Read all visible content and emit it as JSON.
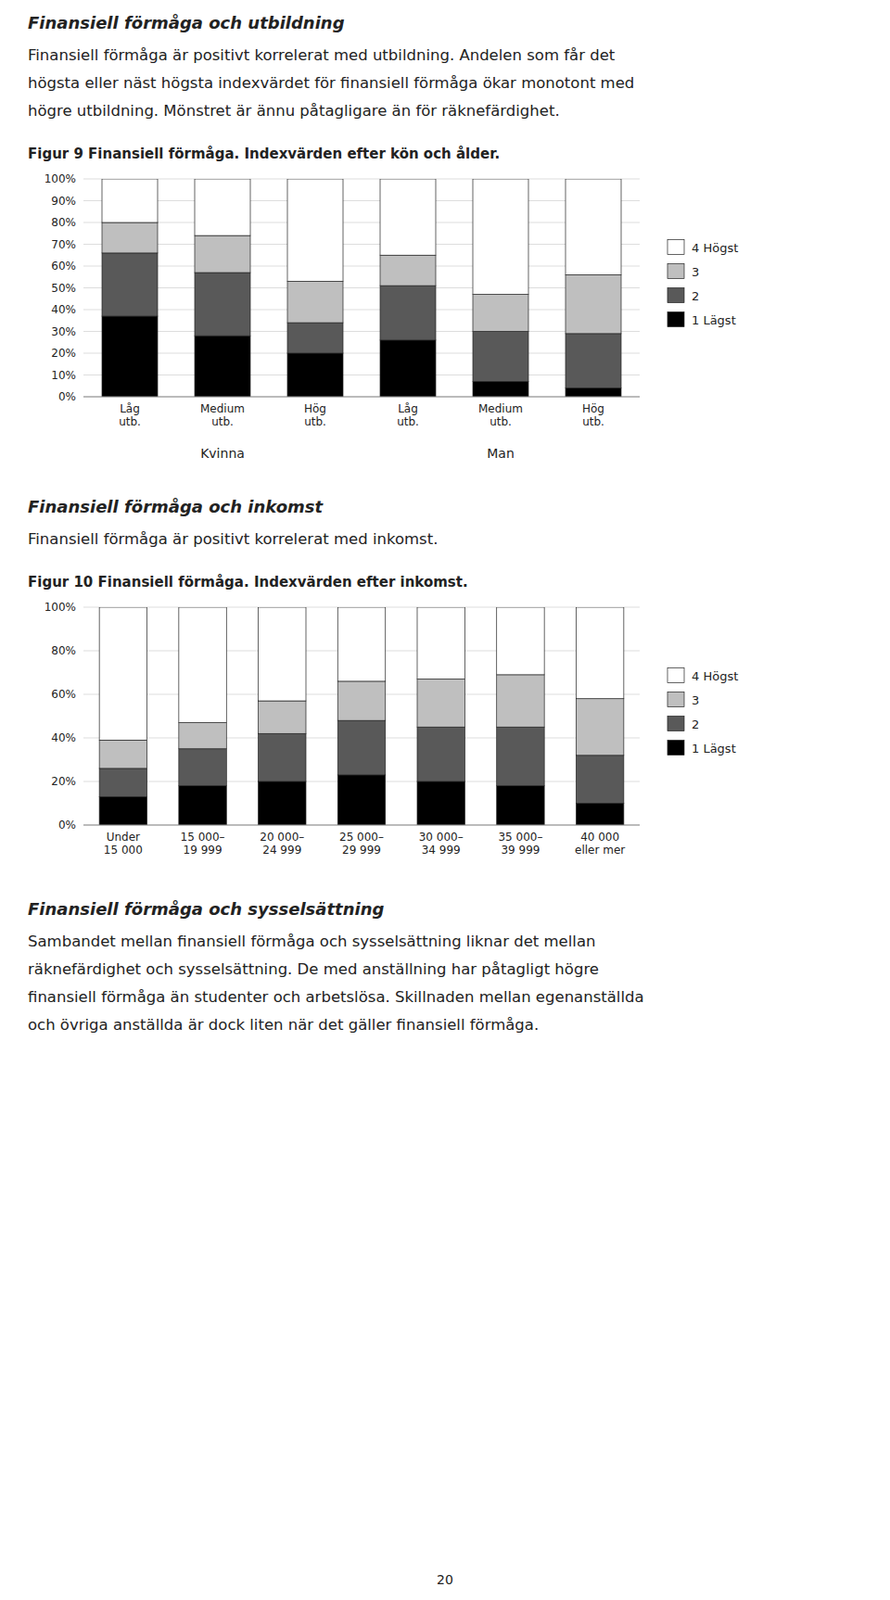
{
  "page": {
    "sections": [
      {
        "heading": "Finansiell förmåga och utbildning",
        "lines": [
          "Finansiell förmåga är positivt korrelerat med utbildning. Andelen som får det",
          "högsta eller näst högsta indexvärdet för finansiell förmåga ökar monotont med",
          "högre utbildning. Mönstret är ännu påtagligare än för räknefärdighet."
        ]
      },
      {
        "heading": "Finansiell förmåga och inkomst",
        "lines": [
          "Finansiell förmåga är positivt korrelerat med inkomst."
        ]
      },
      {
        "heading": "Finansiell förmåga och sysselsättning",
        "lines": [
          "Sambandet mellan finansiell förmåga och sysselsättning liknar det mellan",
          "räknefärdighet och sysselsättning. De med anställning har påtagligt högre",
          "finansiell förmåga än studenter och arbetslösa. Skillnaden mellan egenanställda",
          "och övriga anställda är dock liten när det gäller finansiell förmåga."
        ]
      }
    ],
    "page_number": "20"
  },
  "chart_data": [
    {
      "type": "bar",
      "stacked": true,
      "title": "Figur 9  Finansiell förmåga. Indexvärden efter kön och ålder.",
      "categories": [
        "Låg\nutb.",
        "Medium\nutb.",
        "Hög\nutb.",
        "Låg\nutb.",
        "Medium\nutb.",
        "Hög\nutb."
      ],
      "group_labels": [
        "Kvinna",
        "Man"
      ],
      "series": [
        {
          "name": "1 Lägst",
          "color": "#000000",
          "values": [
            37,
            28,
            20,
            26,
            7,
            4
          ]
        },
        {
          "name": "2",
          "color": "#595959",
          "values": [
            29,
            29,
            14,
            25,
            23,
            25
          ]
        },
        {
          "name": "3",
          "color": "#bfbfbf",
          "values": [
            14,
            17,
            19,
            14,
            17,
            27
          ]
        },
        {
          "name": "4 Högst",
          "color": "#ffffff",
          "values": [
            20,
            26,
            47,
            35,
            53,
            44
          ]
        }
      ],
      "ylim": [
        0,
        100
      ],
      "yticks": [
        {
          "value": 0,
          "label": "0%"
        },
        {
          "value": 10,
          "label": "10%"
        },
        {
          "value": 20,
          "label": "20%"
        },
        {
          "value": 30,
          "label": "30%"
        },
        {
          "value": 40,
          "label": "40%"
        },
        {
          "value": 50,
          "label": "50%"
        },
        {
          "value": 60,
          "label": "60%"
        },
        {
          "value": 70,
          "label": "70%"
        },
        {
          "value": 80,
          "label": "80%"
        },
        {
          "value": 90,
          "label": "90%"
        },
        {
          "value": 100,
          "label": "100%"
        }
      ],
      "grid": true,
      "legend": "right"
    },
    {
      "type": "bar",
      "stacked": true,
      "title": "Figur 10  Finansiell förmåga. Indexvärden efter inkomst.",
      "categories": [
        "Under\n15 000",
        "15 000–\n19 999",
        "20 000–\n24 999",
        "25 000–\n29 999",
        "30 000–\n34 999",
        "35 000–\n39 999",
        "40 000\neller mer"
      ],
      "series": [
        {
          "name": "1 Lägst",
          "color": "#000000",
          "values": [
            13,
            18,
            20,
            23,
            20,
            18,
            10
          ]
        },
        {
          "name": "2",
          "color": "#595959",
          "values": [
            13,
            17,
            22,
            25,
            25,
            27,
            22
          ]
        },
        {
          "name": "3",
          "color": "#bfbfbf",
          "values": [
            13,
            12,
            15,
            18,
            22,
            24,
            26
          ]
        },
        {
          "name": "4 Högst",
          "color": "#ffffff",
          "values": [
            61,
            53,
            43,
            34,
            33,
            31,
            42
          ]
        }
      ],
      "ylim": [
        0,
        100
      ],
      "yticks": [
        {
          "value": 0,
          "label": "0%"
        },
        {
          "value": 20,
          "label": "20%"
        },
        {
          "value": 40,
          "label": "40%"
        },
        {
          "value": 60,
          "label": "60%"
        },
        {
          "value": 80,
          "label": "80%"
        },
        {
          "value": 100,
          "label": "100%"
        }
      ],
      "grid": true,
      "legend": "right"
    }
  ]
}
